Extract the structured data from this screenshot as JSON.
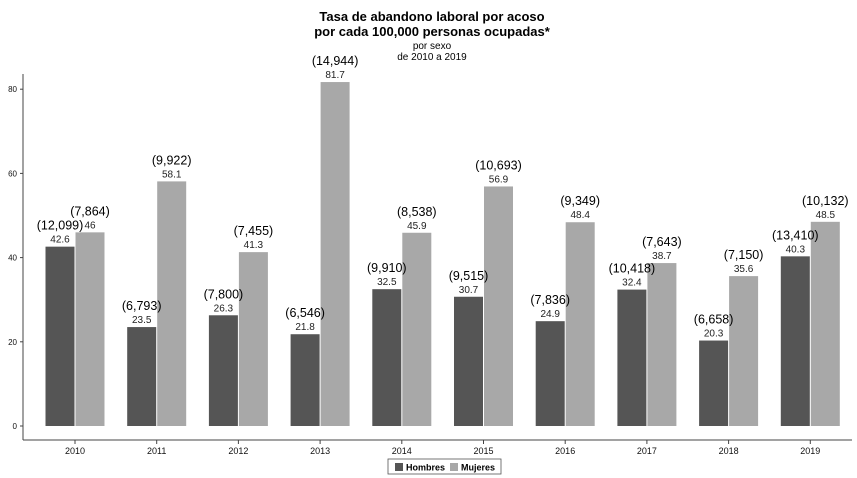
{
  "chart_data": {
    "type": "bar",
    "title": [
      "Tasa de abandono laboral por acoso",
      "por cada 100,000 personas ocupadas*"
    ],
    "subtitle": [
      "por sexo",
      "de 2010 a 2019"
    ],
    "categories": [
      "2010",
      "2011",
      "2012",
      "2013",
      "2014",
      "2015",
      "2016",
      "2017",
      "2018",
      "2019"
    ],
    "series": [
      {
        "name": "Hombres",
        "color": "#555555",
        "values": [
          42.6,
          23.5,
          26.3,
          21.8,
          32.5,
          30.7,
          24.9,
          32.4,
          20.3,
          40.3
        ],
        "value_labels": [
          "42.6",
          "23.5",
          "26.3",
          "21.8",
          "32.5",
          "30.7",
          "24.9",
          "32.4",
          "20.3",
          "40.3"
        ],
        "counts": [
          "(12,099)",
          "(6,793)",
          "(7,800)",
          "(6,546)",
          "(9,910)",
          "(9,515)",
          "(7,836)",
          "(10,418)",
          "(6,658)",
          "(13,410)"
        ]
      },
      {
        "name": "Mujeres",
        "color": "#a8a8a8",
        "values": [
          46,
          58.1,
          41.3,
          81.7,
          45.9,
          56.9,
          48.4,
          38.7,
          35.6,
          48.5
        ],
        "value_labels": [
          "46",
          "58.1",
          "41.3",
          "81.7",
          "45.9",
          "56.9",
          "48.4",
          "38.7",
          "35.6",
          "48.5"
        ],
        "counts": [
          "(7,864)",
          "(9,922)",
          "(7,455)",
          "(14,944)",
          "(8,538)",
          "(10,693)",
          "(9,349)",
          "(7,643)",
          "(7,150)",
          "(10,132)"
        ]
      }
    ],
    "y_ticks": [
      "0",
      "20",
      "40",
      "60",
      "80"
    ],
    "ylim": [
      0,
      85
    ],
    "xlabel": "",
    "ylabel": "",
    "grid": false,
    "legend_position": "bottom-center"
  }
}
